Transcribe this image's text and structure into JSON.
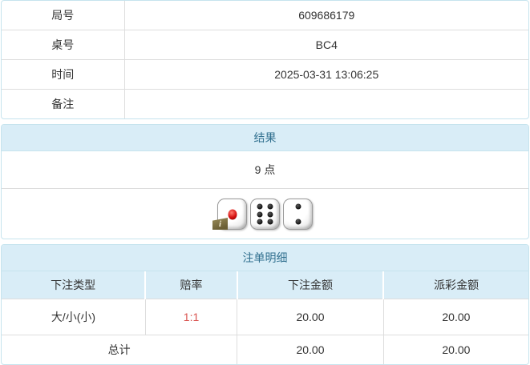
{
  "info_table": {
    "rows": [
      {
        "label": "局号",
        "value": "609686179"
      },
      {
        "label": "桌号",
        "value": "BC4"
      },
      {
        "label": "时间",
        "value": "2025-03-31 13:06:25"
      },
      {
        "label": "备注",
        "value": ""
      }
    ]
  },
  "result_panel": {
    "title": "结果",
    "result_text": "9 点",
    "dice": [
      1,
      6,
      2
    ],
    "info_badge_label": "i"
  },
  "bets_panel": {
    "title": "注单明细",
    "columns": [
      "下注类型",
      "赔率",
      "下注金额",
      "派彩金额"
    ],
    "rows": [
      {
        "bet_type": "大/小(小)",
        "odds": "1:1",
        "bet_amount": "20.00",
        "payout": "20.00"
      }
    ],
    "total": {
      "label": "总计",
      "bet_amount": "20.00",
      "payout": "20.00"
    }
  },
  "colors": {
    "panel_border": "#c6e4ee",
    "header_bg": "#d9edf7",
    "header_text": "#31708f",
    "row_border": "#dddddd",
    "text": "#333333",
    "odds_red": "#d9534f"
  }
}
